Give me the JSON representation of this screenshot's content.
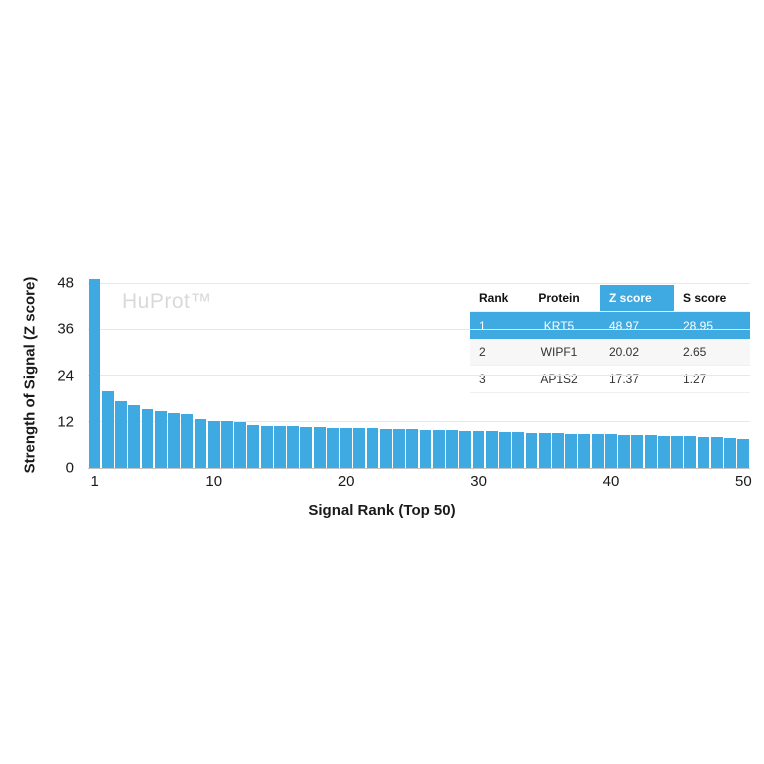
{
  "watermark": "HuProt™",
  "colors": {
    "bar": "#3fa9e1",
    "table_highlight": "#3fa9e1",
    "gridline": "#e8e8e8",
    "axis_line": "#c4c4c4",
    "watermark_text": "#d9d9d9"
  },
  "chart_data": {
    "type": "bar",
    "title": "",
    "xlabel": "Signal Rank (Top 50)",
    "ylabel": "Strength of Signal (Z score)",
    "ylim": [
      0,
      48
    ],
    "yticks": [
      0,
      12,
      24,
      36,
      48
    ],
    "xticks": [
      1,
      10,
      20,
      30,
      40,
      50
    ],
    "categories": [
      1,
      2,
      3,
      4,
      5,
      6,
      7,
      8,
      9,
      10,
      11,
      12,
      13,
      14,
      15,
      16,
      17,
      18,
      19,
      20,
      21,
      22,
      23,
      24,
      25,
      26,
      27,
      28,
      29,
      30,
      31,
      32,
      33,
      34,
      35,
      36,
      37,
      38,
      39,
      40,
      41,
      42,
      43,
      44,
      45,
      46,
      47,
      48,
      49,
      50
    ],
    "values": [
      48.97,
      20.02,
      17.37,
      16.3,
      15.2,
      14.8,
      14.4,
      14.0,
      12.6,
      12.3,
      12.1,
      12.0,
      11.2,
      11.0,
      10.9,
      10.8,
      10.7,
      10.6,
      10.5,
      10.4,
      10.3,
      10.3,
      10.2,
      10.1,
      10.0,
      9.9,
      9.8,
      9.8,
      9.7,
      9.6,
      9.5,
      9.4,
      9.3,
      9.2,
      9.1,
      9.0,
      8.9,
      8.8,
      8.8,
      8.7,
      8.6,
      8.5,
      8.5,
      8.4,
      8.3,
      8.2,
      8.1,
      8.0,
      7.8,
      7.5
    ],
    "grid": true,
    "legend": false
  },
  "table": {
    "headers": [
      "Rank",
      "Protein",
      "Z score",
      "S score"
    ],
    "highlight_column": 2,
    "rows": [
      {
        "cells": [
          "1",
          "KRT5",
          "48.97",
          "28.95"
        ],
        "highlight": true
      },
      {
        "cells": [
          "2",
          "WIPF1",
          "20.02",
          "2.65"
        ],
        "highlight": false
      },
      {
        "cells": [
          "3",
          "AP1S2",
          "17.37",
          "1.27"
        ],
        "highlight": false
      }
    ]
  }
}
